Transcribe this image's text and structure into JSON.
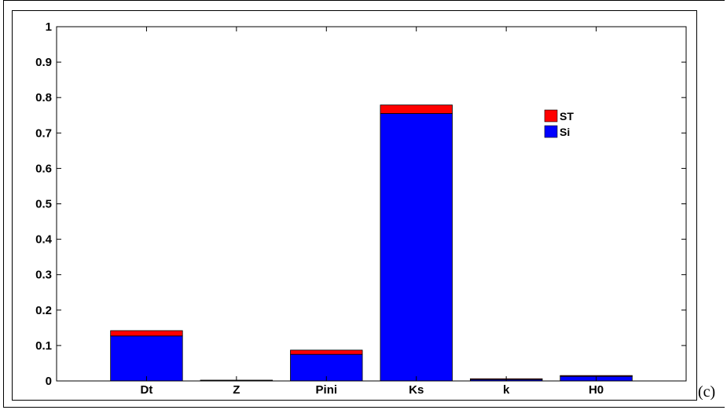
{
  "panel_label": "(c)",
  "chart_data": {
    "type": "bar",
    "stacked": true,
    "categories": [
      "Dt",
      "Z",
      "Pini",
      "Ks",
      "k",
      "H0"
    ],
    "series": [
      {
        "name": "Si",
        "color": "#0000ff",
        "values": [
          0.127,
          0.002,
          0.075,
          0.755,
          0.006,
          0.015
        ]
      },
      {
        "name": "ST",
        "color": "#ff0000",
        "values": [
          0.015,
          0.0,
          0.012,
          0.024,
          0.0,
          0.0
        ]
      }
    ],
    "yticks": [
      "0",
      "0.1",
      "0.2",
      "0.3",
      "0.4",
      "0.5",
      "0.6",
      "0.7",
      "0.8",
      "0.9",
      "1"
    ],
    "ylim": [
      0,
      1
    ],
    "xlabel": "",
    "ylabel": "",
    "title": "",
    "grid": false,
    "legend_order": [
      "ST",
      "Si"
    ],
    "legend_position": "upper-right"
  }
}
